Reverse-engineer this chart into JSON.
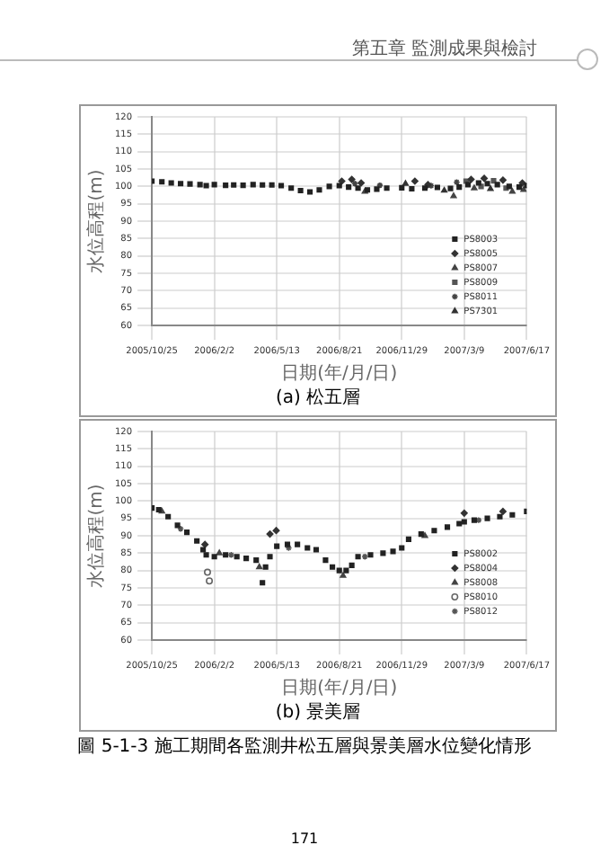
{
  "chart_data": [
    {
      "type": "scatter",
      "title": "(a) 松五層",
      "xlabel": "日期(年/月/日)",
      "ylabel": "水位高程(m)",
      "annotations": [
        "第五章 監測成果與檢討"
      ],
      "xlim": [
        "2005-10-25",
        "2007-06-17"
      ],
      "xticks": [
        {
          "value": "2005-10-25",
          "label": "2005/10/25"
        },
        {
          "value": "2006-02-02",
          "label": "2006/2/2"
        },
        {
          "value": "2006-05-13",
          "label": "2006/5/13"
        },
        {
          "value": "2006-08-21",
          "label": "2006/8/21"
        },
        {
          "value": "2006-11-29",
          "label": "2006/11/29"
        },
        {
          "value": "2007-03-09",
          "label": "2007/3/9"
        },
        {
          "value": "2007-06-17",
          "label": "2007/6/17"
        }
      ],
      "ylim": [
        60,
        120
      ],
      "yticks": [
        60,
        65,
        70,
        75,
        80,
        85,
        90,
        95,
        100,
        105,
        110,
        115,
        120
      ],
      "grid": true,
      "legend": "right",
      "series": [
        {
          "name": "PS8003",
          "color": "#222222",
          "marker": "square",
          "x": [
            "2005-10-25",
            "2005-11-10",
            "2005-11-25",
            "2005-12-10",
            "2005-12-25",
            "2006-01-10",
            "2006-01-20",
            "2006-02-02",
            "2006-02-20",
            "2006-03-05",
            "2006-03-20",
            "2006-04-05",
            "2006-04-20",
            "2006-05-05",
            "2006-05-20",
            "2006-06-05",
            "2006-06-20",
            "2006-07-05",
            "2006-07-20",
            "2006-08-05",
            "2006-08-21",
            "2006-09-05",
            "2006-09-20",
            "2006-10-05",
            "2006-10-20",
            "2006-11-05",
            "2006-11-29",
            "2006-12-15",
            "2007-01-05",
            "2007-01-25",
            "2007-02-15",
            "2007-03-01",
            "2007-03-15",
            "2007-04-01",
            "2007-04-15",
            "2007-05-01",
            "2007-05-20",
            "2007-06-05",
            "2007-06-17"
          ],
          "values": [
            101.5,
            101.3,
            101,
            100.8,
            100.7,
            100.5,
            100.2,
            100.5,
            100.3,
            100.4,
            100.3,
            100.5,
            100.4,
            100.4,
            100.2,
            99.5,
            98.8,
            98.4,
            99,
            100,
            100.2,
            99.8,
            99.5,
            99,
            99.2,
            99.5,
            99.6,
            99.3,
            99.5,
            99.7,
            99.4,
            99.8,
            100.5,
            101,
            100.8,
            100.5,
            100,
            99.8,
            100.2
          ]
        },
        {
          "name": "PS8005",
          "color": "#333333",
          "marker": "diamond",
          "x": [
            "2006-08-25",
            "2006-09-10",
            "2006-09-25",
            "2006-12-20",
            "2007-01-10",
            "2007-03-20",
            "2007-04-10",
            "2007-05-10",
            "2007-06-10"
          ],
          "values": [
            101.5,
            102,
            101,
            101.5,
            100.5,
            102,
            102.3,
            101.8,
            101
          ]
        },
        {
          "name": "PS8007",
          "color": "#444444",
          "marker": "triangle",
          "x": [
            "2006-10-01",
            "2007-02-20",
            "2007-03-25",
            "2007-05-25",
            "2007-06-12"
          ],
          "values": [
            98.5,
            97.2,
            99.5,
            98.5,
            99
          ]
        },
        {
          "name": "PS8009",
          "color": "#555555",
          "marker": "square",
          "x": [
            "2007-03-12",
            "2007-04-05",
            "2007-04-25",
            "2007-05-15"
          ],
          "values": [
            101.5,
            100,
            101.6,
            99.5
          ]
        },
        {
          "name": "PS8011",
          "color": "#444444",
          "marker": "cross",
          "x": [
            "2006-09-15",
            "2006-10-25",
            "2007-01-15",
            "2007-02-25"
          ],
          "values": [
            100.8,
            100.3,
            100.2,
            101.2
          ]
        },
        {
          "name": "PS7301",
          "color": "#333333",
          "marker": "triangle",
          "x": [
            "2006-12-05",
            "2007-02-05",
            "2007-04-20"
          ],
          "values": [
            100.8,
            98.8,
            99.3
          ]
        }
      ]
    },
    {
      "type": "scatter",
      "title": "(b) 景美層",
      "xlabel": "日期(年/月/日)",
      "ylabel": "水位高程(m)",
      "annotations": [
        "圖 5-1-3 施工期間各監測井松五層與景美層水位變化情形",
        "171"
      ],
      "xlim": [
        "2005-10-25",
        "2007-06-17"
      ],
      "xticks": [
        {
          "value": "2005-10-25",
          "label": "2005/10/25"
        },
        {
          "value": "2006-02-02",
          "label": "2006/2/2"
        },
        {
          "value": "2006-05-13",
          "label": "2006/5/13"
        },
        {
          "value": "2006-08-21",
          "label": "2006/8/21"
        },
        {
          "value": "2006-11-29",
          "label": "2006/11/29"
        },
        {
          "value": "2007-03-09",
          "label": "2007/3/9"
        },
        {
          "value": "2007-06-17",
          "label": "2007/6/17"
        }
      ],
      "ylim": [
        60,
        120
      ],
      "yticks": [
        60,
        65,
        70,
        75,
        80,
        85,
        90,
        95,
        100,
        105,
        110,
        115,
        120
      ],
      "grid": true,
      "legend": "right",
      "series": [
        {
          "name": "PS8002",
          "color": "#222222",
          "marker": "square",
          "x": [
            "2005-10-25",
            "2005-11-05",
            "2005-11-20",
            "2005-12-05",
            "2005-12-20",
            "2006-01-05",
            "2006-01-15",
            "2006-01-20",
            "2006-02-02",
            "2006-02-20",
            "2006-03-10",
            "2006-03-25",
            "2006-04-10",
            "2006-04-20",
            "2006-04-25",
            "2006-05-02",
            "2006-05-13",
            "2006-05-30",
            "2006-06-15",
            "2006-07-01",
            "2006-07-15",
            "2006-07-30",
            "2006-08-10",
            "2006-08-21",
            "2006-09-01",
            "2006-09-10",
            "2006-09-20",
            "2006-10-10",
            "2006-10-30",
            "2006-11-15",
            "2006-11-29",
            "2006-12-10",
            "2006-12-30",
            "2007-01-20",
            "2007-02-10",
            "2007-03-01",
            "2007-03-09",
            "2007-03-25",
            "2007-04-15",
            "2007-05-05",
            "2007-05-25",
            "2007-06-17"
          ],
          "values": [
            98,
            97.5,
            95.5,
            93,
            91,
            88.5,
            86,
            84.5,
            84,
            84.5,
            84,
            83.5,
            83,
            76.5,
            81,
            84,
            87,
            87.5,
            87.5,
            86.5,
            86,
            83,
            81,
            80,
            80,
            81.5,
            84,
            84.5,
            85,
            85.5,
            86.5,
            89,
            90.5,
            91.5,
            92.5,
            93.5,
            94,
            94.5,
            95,
            95.5,
            96,
            97
          ]
        },
        {
          "name": "PS8004",
          "color": "#333333",
          "marker": "diamond",
          "x": [
            "2006-01-18",
            "2006-05-02",
            "2006-05-12",
            "2007-03-09",
            "2007-05-10"
          ],
          "values": [
            87.5,
            90.5,
            91.5,
            96.5,
            97
          ]
        },
        {
          "name": "PS8008",
          "color": "#444444",
          "marker": "triangle",
          "x": [
            "2005-11-10",
            "2006-02-10",
            "2006-04-15",
            "2006-08-27",
            "2007-01-05"
          ],
          "values": [
            97,
            85,
            81,
            78.5,
            90
          ]
        },
        {
          "name": "PS8010",
          "color": "#666666",
          "marker": "circle",
          "x": [
            "2006-01-22",
            "2006-01-25"
          ],
          "values": [
            79.5,
            77
          ]
        },
        {
          "name": "PS8012",
          "color": "#555555",
          "marker": "cross",
          "x": [
            "2005-12-10",
            "2006-03-01",
            "2006-06-01",
            "2006-10-01",
            "2007-04-01"
          ],
          "values": [
            92,
            84.5,
            86.5,
            84,
            94.5
          ]
        }
      ]
    }
  ]
}
